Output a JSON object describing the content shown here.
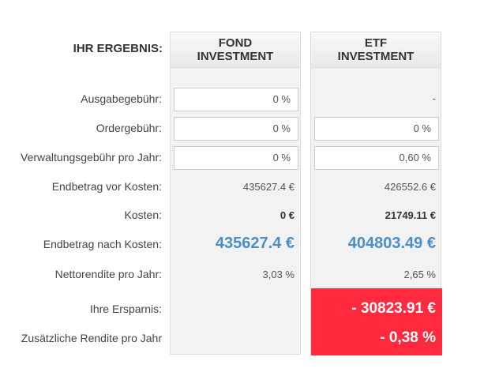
{
  "header": {
    "label": "IHR ERGEBNIS:",
    "fond_title_1": "FOND",
    "fond_title_2": "INVESTMENT",
    "etf_title_1": "ETF",
    "etf_title_2": "INVESTMENT"
  },
  "rows": {
    "ausgabe": {
      "label": "Ausgabegebühr:",
      "fond": "0 %",
      "etf": "-"
    },
    "order": {
      "label": "Ordergebühr:",
      "fond": "0 %",
      "etf": "0 %"
    },
    "verwaltung": {
      "label": "Verwaltungsgebühr pro Jahr:",
      "fond": "0 %",
      "etf": "0,60 %"
    },
    "vor": {
      "label": "Endbetrag vor Kosten:",
      "fond": "435627.4 €",
      "etf": "426552.6 €"
    },
    "kosten": {
      "label": "Kosten:",
      "fond": "0 €",
      "etf": "21749.11 €"
    },
    "nach": {
      "label": "Endbetrag nach Kosten:",
      "fond": "435627.4 €",
      "etf": "404803.49 €"
    },
    "netto": {
      "label": "Nettorendite pro Jahr:",
      "fond": "3,03 %",
      "etf": "2,65 %"
    }
  },
  "savings": {
    "ersparnis_label": "Ihre Ersparnis:",
    "ersparnis_value": "- 30823.91 €",
    "rendite_label": "Zusätzliche Rendite pro Jahr",
    "rendite_value": "- 0,38 %"
  },
  "colors": {
    "accent_blue": "#4a8fc7",
    "savings_red": "#ff2a3d"
  }
}
